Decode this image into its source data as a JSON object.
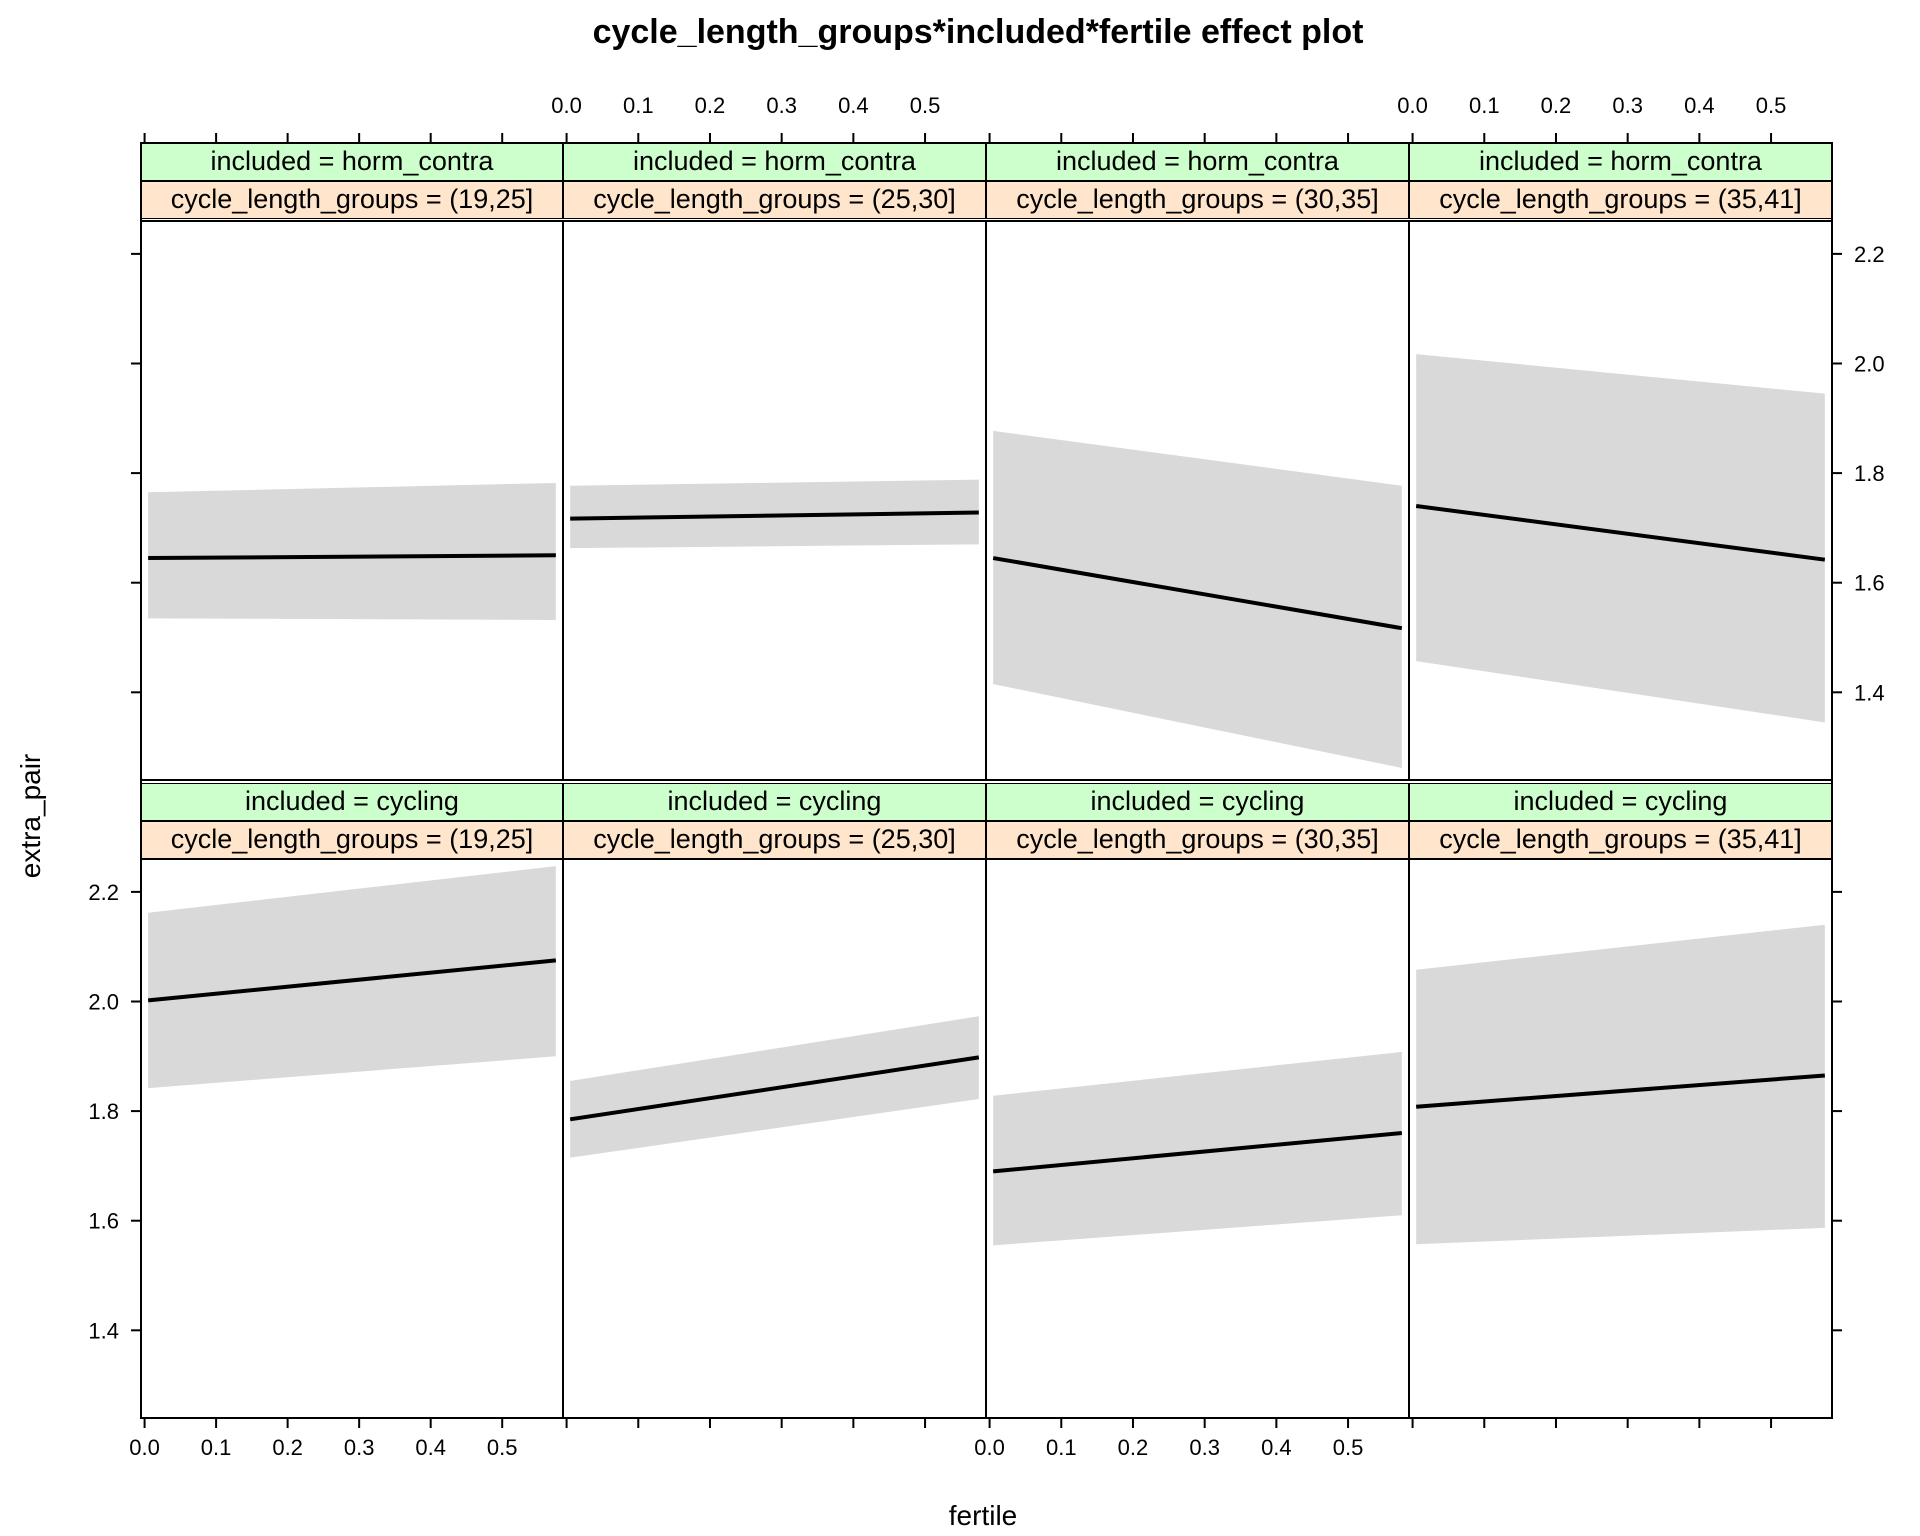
{
  "chart_data": {
    "type": "line",
    "title": "cycle_length_groups*included*fertile effect plot",
    "xlabel": "fertile",
    "ylabel": "extra_pair",
    "xlim": [
      -0.005,
      0.585
    ],
    "ylim": [
      1.24,
      2.26
    ],
    "x_ticks": [
      0.0,
      0.1,
      0.2,
      0.3,
      0.4,
      0.5
    ],
    "x_tick_labels": [
      "0.0",
      "0.1",
      "0.2",
      "0.3",
      "0.4",
      "0.5"
    ],
    "y_ticks": [
      1.4,
      1.6,
      1.8,
      2.0,
      2.2
    ],
    "y_tick_labels": [
      "1.4",
      "1.6",
      "1.8",
      "2.0",
      "2.2"
    ],
    "grid": false,
    "band_color": "#d9d9d9",
    "line_color": "#000000",
    "strip_colors": {
      "included": "#ccffcc",
      "cycle_length_groups": "#ffe5cc"
    },
    "panels": [
      {
        "row": 0,
        "col": 0,
        "strip_top": "included = horm_contra",
        "strip_bottom": "cycle_length_groups = (19,25]",
        "x": [
          0.005,
          0.575
        ],
        "fit": [
          1.645,
          1.65
        ],
        "lower": [
          1.535,
          1.532
        ],
        "upper": [
          1.765,
          1.782
        ]
      },
      {
        "row": 0,
        "col": 1,
        "strip_top": "included = horm_contra",
        "strip_bottom": "cycle_length_groups = (25,30]",
        "x": [
          0.005,
          0.575
        ],
        "fit": [
          1.717,
          1.728
        ],
        "lower": [
          1.663,
          1.67
        ],
        "upper": [
          1.777,
          1.788
        ]
      },
      {
        "row": 0,
        "col": 2,
        "strip_top": "included = horm_contra",
        "strip_bottom": "cycle_length_groups = (30,35]",
        "x": [
          0.005,
          0.575
        ],
        "fit": [
          1.645,
          1.517
        ],
        "lower": [
          1.415,
          1.262
        ],
        "upper": [
          1.877,
          1.777
        ]
      },
      {
        "row": 0,
        "col": 3,
        "strip_top": "included = horm_contra",
        "strip_bottom": "cycle_length_groups = (35,41]",
        "x": [
          0.005,
          0.575
        ],
        "fit": [
          1.74,
          1.642
        ],
        "lower": [
          1.457,
          1.345
        ],
        "upper": [
          2.017,
          1.945
        ]
      },
      {
        "row": 1,
        "col": 0,
        "strip_top": "included = cycling",
        "strip_bottom": "cycle_length_groups = (19,25]",
        "x": [
          0.005,
          0.575
        ],
        "fit": [
          2.002,
          2.075
        ],
        "lower": [
          1.842,
          1.9
        ],
        "upper": [
          2.162,
          2.247
        ]
      },
      {
        "row": 1,
        "col": 1,
        "strip_top": "included = cycling",
        "strip_bottom": "cycle_length_groups = (25,30]",
        "x": [
          0.005,
          0.575
        ],
        "fit": [
          1.785,
          1.898
        ],
        "lower": [
          1.715,
          1.822
        ],
        "upper": [
          1.855,
          1.973
        ]
      },
      {
        "row": 1,
        "col": 2,
        "strip_top": "included = cycling",
        "strip_bottom": "cycle_length_groups = (30,35]",
        "x": [
          0.005,
          0.575
        ],
        "fit": [
          1.69,
          1.76
        ],
        "lower": [
          1.555,
          1.61
        ],
        "upper": [
          1.828,
          1.908
        ]
      },
      {
        "row": 1,
        "col": 3,
        "strip_top": "included = cycling",
        "strip_bottom": "cycle_length_groups = (35,41]",
        "x": [
          0.005,
          0.575
        ],
        "fit": [
          1.808,
          1.865
        ],
        "lower": [
          1.557,
          1.587
        ],
        "upper": [
          2.058,
          2.14
        ]
      }
    ]
  }
}
